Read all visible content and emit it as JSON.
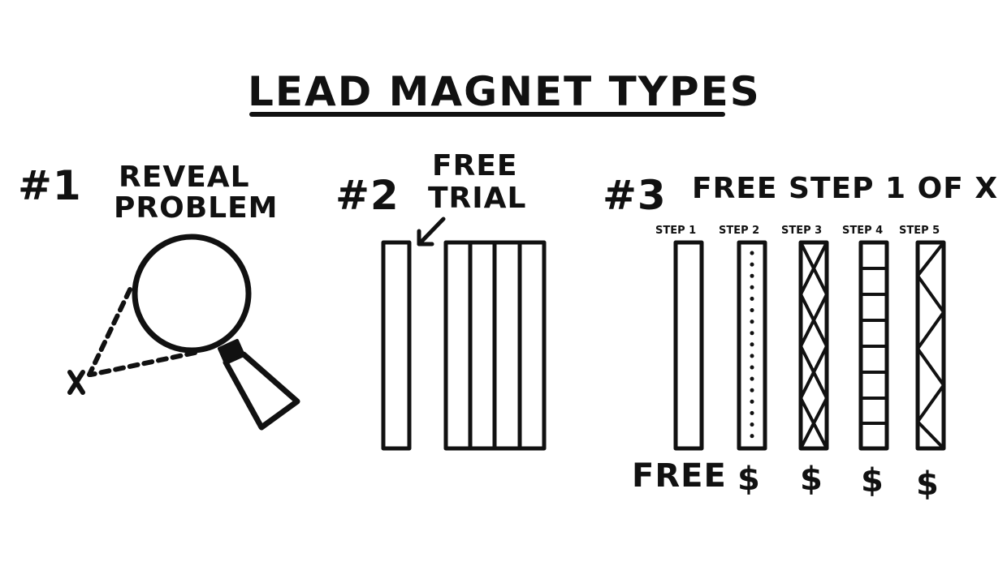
{
  "title": "Lead Magnet Types",
  "section1": {
    "number": "#1",
    "label_line1": "Reveal",
    "label_line2": "Problem"
  },
  "section2": {
    "number": "#2",
    "label_line1": "Free",
    "label_line2": "Trial"
  },
  "section3": {
    "number": "#3",
    "label": "Free Step 1 of X",
    "steps": [
      {
        "label": "Step 1",
        "price": "Free",
        "pattern": "plain"
      },
      {
        "label": "Step 2",
        "price": "$",
        "pattern": "dots"
      },
      {
        "label": "Step 3",
        "price": "$",
        "pattern": "crosses"
      },
      {
        "label": "Step 4",
        "price": "$",
        "pattern": "ladder"
      },
      {
        "label": "Step 5",
        "price": "$",
        "pattern": "zigzag"
      }
    ]
  },
  "colors": {
    "ink": "#111111",
    "paper": "#ffffff"
  }
}
